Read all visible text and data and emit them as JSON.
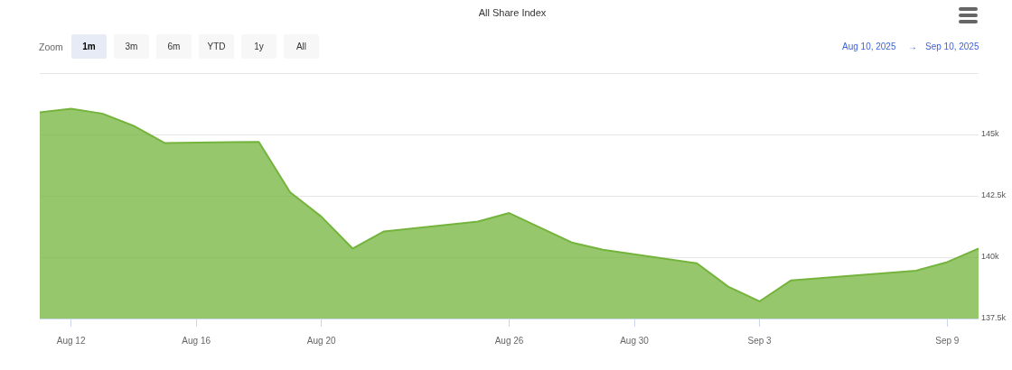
{
  "chart_data": {
    "type": "area",
    "title": "All Share Index",
    "annotations": [
      "Zoom",
      "1m",
      "3m",
      "6m",
      "YTD",
      "1y",
      "All",
      "Aug 10, 2025",
      "→",
      "Sep 10, 2025"
    ],
    "x": [
      "2025-08-11",
      "2025-08-12",
      "2025-08-13",
      "2025-08-14",
      "2025-08-15",
      "2025-08-18",
      "2025-08-19",
      "2025-08-20",
      "2025-08-21",
      "2025-08-22",
      "2025-08-25",
      "2025-08-26",
      "2025-08-27",
      "2025-08-28",
      "2025-08-29",
      "2025-09-01",
      "2025-09-02",
      "2025-09-03",
      "2025-09-04",
      "2025-09-08",
      "2025-09-09",
      "2025-09-10"
    ],
    "values": [
      145900,
      146050,
      145850,
      145350,
      144650,
      144700,
      142650,
      141650,
      140350,
      141050,
      141450,
      141800,
      141200,
      140600,
      140300,
      139750,
      138800,
      138200,
      139050,
      139450,
      139800,
      140350
    ],
    "color": "#74b43c",
    "xlim": [
      "2025-08-11",
      "2025-09-10"
    ],
    "xticks": [
      {
        "value": "2025-08-12",
        "label": "Aug 12"
      },
      {
        "value": "2025-08-16",
        "label": "Aug 16"
      },
      {
        "value": "2025-08-20",
        "label": "Aug 20"
      },
      {
        "value": "2025-08-26",
        "label": "Aug 26"
      },
      {
        "value": "2025-08-30",
        "label": "Aug 30"
      },
      {
        "value": "2025-09-03",
        "label": "Sep 3"
      },
      {
        "value": "2025-09-09",
        "label": "Sep 9"
      }
    ],
    "ylim": [
      137500,
      147500
    ],
    "yticks": [
      {
        "value": 137500,
        "label": "137.5k"
      },
      {
        "value": 140000,
        "label": "140k"
      },
      {
        "value": 142500,
        "label": "142.5k"
      },
      {
        "value": 145000,
        "label": "145k"
      },
      {
        "value": 147500,
        "label": null
      }
    ],
    "grid": "y"
  }
}
